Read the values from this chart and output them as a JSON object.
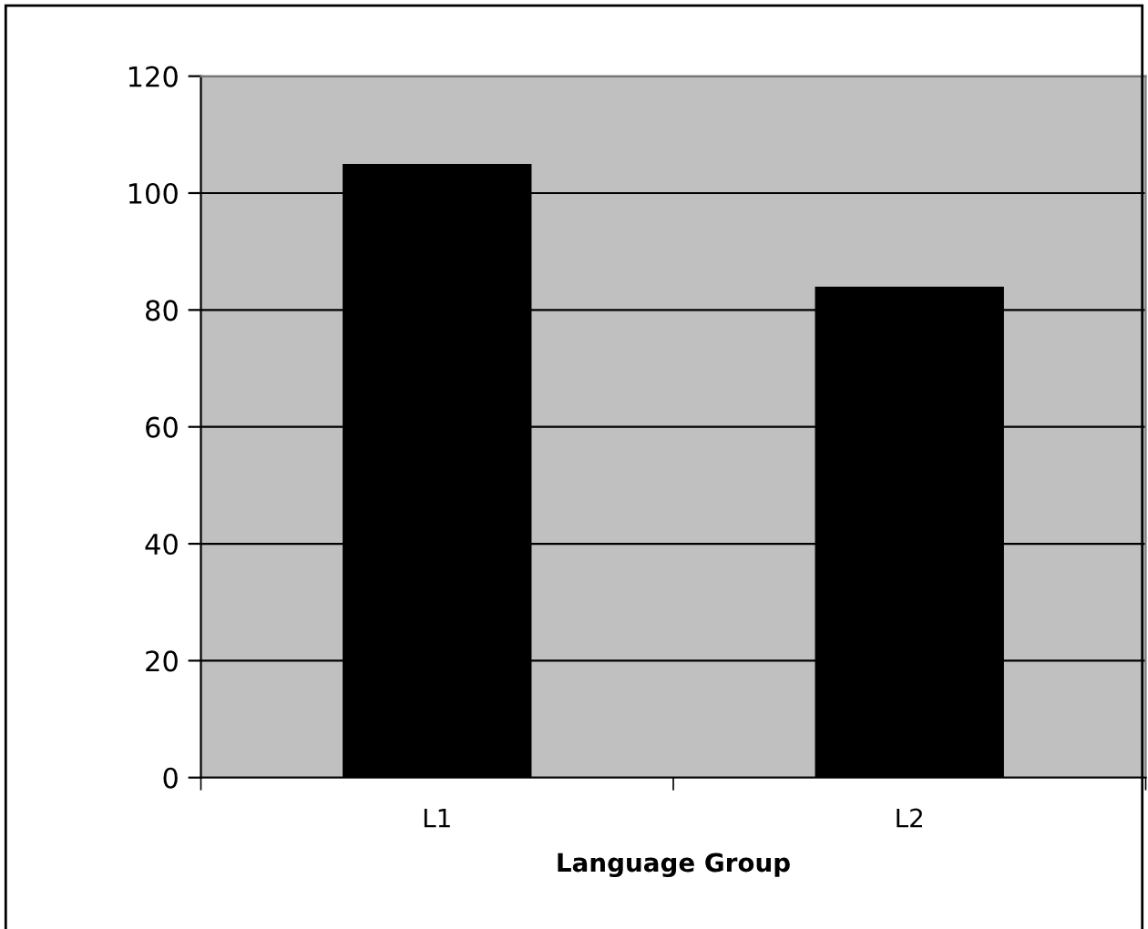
{
  "chart_data": {
    "type": "bar",
    "xlabel": "Language Group",
    "categories": [
      "L1",
      "L2"
    ],
    "values": [
      105,
      84
    ],
    "color": "#000000",
    "ylim": [
      0,
      120
    ],
    "yticks": [
      0,
      20,
      40,
      60,
      80,
      100,
      120
    ],
    "grid": "y",
    "legend": false
  }
}
